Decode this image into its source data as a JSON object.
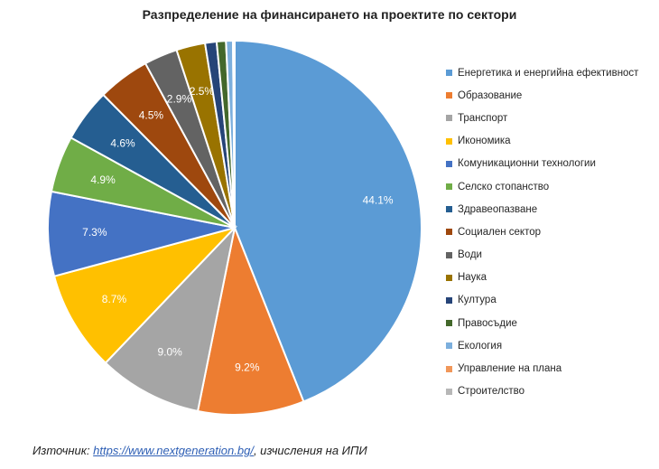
{
  "chart_data": {
    "type": "pie",
    "title": "Разпределение на финансирането на проектите по сектори",
    "legend_position": "right",
    "slices": [
      {
        "label": "Енергетика и енергийна ефективност",
        "value": 44.1,
        "value_label": "44.1%",
        "color": "#5b9bd5"
      },
      {
        "label": "Образование",
        "value": 9.2,
        "value_label": "9.2%",
        "color": "#ed7d31"
      },
      {
        "label": "Транспорт",
        "value": 9.0,
        "value_label": "9.0%",
        "color": "#a5a5a5"
      },
      {
        "label": "Икономика",
        "value": 8.7,
        "value_label": "8.7%",
        "color": "#ffc000"
      },
      {
        "label": "Комуникационни технологии",
        "value": 7.3,
        "value_label": "7.3%",
        "color": "#4472c4"
      },
      {
        "label": "Селско стопанство",
        "value": 4.9,
        "value_label": "4.9%",
        "color": "#70ad47"
      },
      {
        "label": "Здравеопазване",
        "value": 4.6,
        "value_label": "4.6%",
        "color": "#255e91"
      },
      {
        "label": "Социален сектор",
        "value": 4.5,
        "value_label": "4.5%",
        "color": "#9e480e"
      },
      {
        "label": "Води",
        "value": 2.9,
        "value_label": "2.9%",
        "color": "#636363"
      },
      {
        "label": "Наука",
        "value": 2.5,
        "value_label": "2.5%",
        "color": "#997300"
      },
      {
        "label": "Култура",
        "value": 1.0,
        "value_label": "",
        "color": "#264478"
      },
      {
        "label": "Правосъдие",
        "value": 0.8,
        "value_label": "",
        "color": "#43682b"
      },
      {
        "label": "Екология",
        "value": 0.6,
        "value_label": "",
        "color": "#7cafdd"
      },
      {
        "label": "Управление на плана",
        "value": 0.1,
        "value_label": "",
        "color": "#f1975a"
      },
      {
        "label": "Строителство",
        "value": 0.05,
        "value_label": "",
        "color": "#b7b7b7"
      }
    ]
  },
  "source": {
    "prefix": "Източник: ",
    "link_text": "https://www.nextgeneration.bg/",
    "suffix": ", изчисления на ИПИ"
  }
}
